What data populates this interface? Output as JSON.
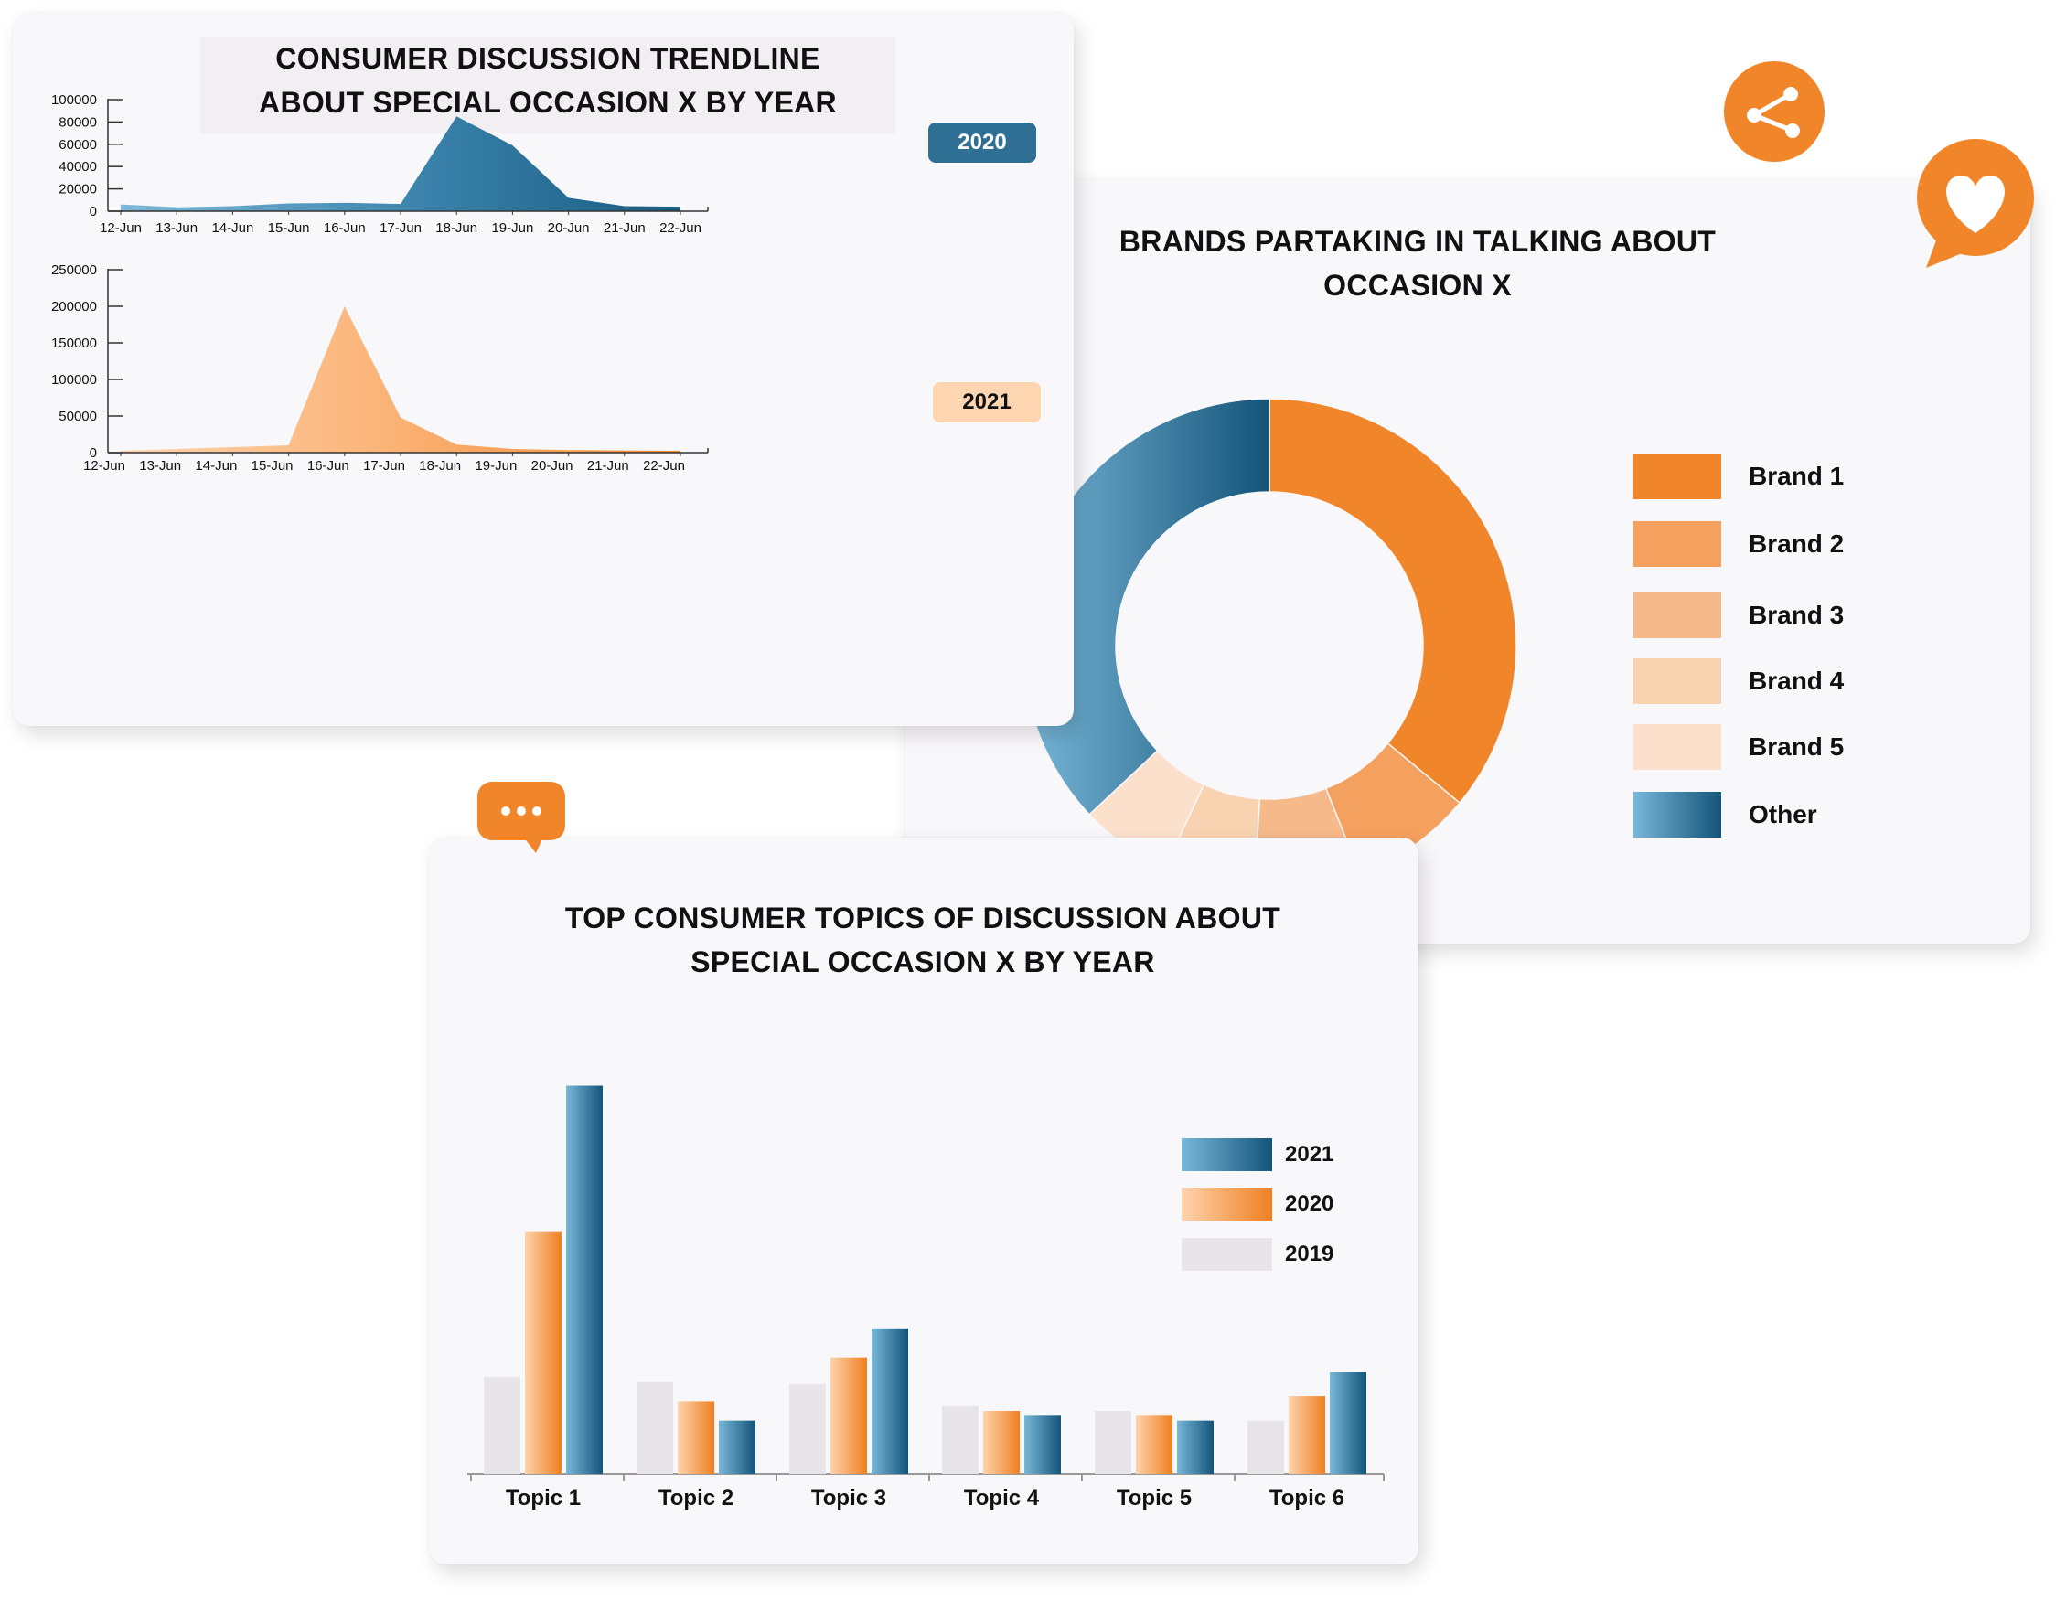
{
  "colors": {
    "orange": "#f0852a",
    "blue_dark": "#145479",
    "blue_light": "#78b7d8",
    "peach": "#fdc79a",
    "grey": "#e7e5ea"
  },
  "icons": {
    "share": "share-icon",
    "heart": "heart-icon",
    "chat": "chat-bubble-icon"
  },
  "trend_card": {
    "title_line1": "CONSUMER DISCUSSION TRENDLINE",
    "title_line2": "ABOUT SPECIAL OCCASION X BY YEAR",
    "badge_2020": "2020",
    "badge_2021": "2021"
  },
  "brands_card": {
    "title_line1": "BRANDS PARTAKING IN TALKING ABOUT",
    "title_line2": "OCCASION X"
  },
  "topics_card": {
    "title_line1": "TOP CONSUMER TOPICS OF DISCUSSION ABOUT",
    "title_line2": "SPECIAL OCCASION X BY YEAR"
  },
  "chart_data": [
    {
      "type": "area",
      "title": "CONSUMER DISCUSSION TRENDLINE ABOUT SPECIAL OCCASION X BY YEAR",
      "series_label": "2020",
      "x": [
        "12-Jun",
        "13-Jun",
        "14-Jun",
        "15-Jun",
        "16-Jun",
        "17-Jun",
        "18-Jun",
        "19-Jun",
        "20-Jun",
        "21-Jun",
        "22-Jun"
      ],
      "values": [
        6000,
        3500,
        4500,
        7000,
        7500,
        6500,
        85000,
        59000,
        12000,
        4500,
        4000
      ],
      "yticks": [
        0,
        20000,
        40000,
        60000,
        80000,
        100000
      ],
      "ylim": [
        0,
        100000
      ]
    },
    {
      "type": "area",
      "series_label": "2021",
      "x": [
        "12-Jun",
        "13-Jun",
        "14-Jun",
        "15-Jun",
        "16-Jun",
        "17-Jun",
        "18-Jun",
        "19-Jun",
        "20-Jun",
        "21-Jun",
        "22-Jun"
      ],
      "values": [
        2500,
        5000,
        7500,
        10000,
        200000,
        48000,
        11000,
        5000,
        3500,
        3000,
        2500
      ],
      "yticks": [
        0,
        50000,
        100000,
        150000,
        200000,
        250000
      ],
      "ylim": [
        0,
        250000
      ]
    },
    {
      "type": "pie",
      "title": "BRANDS PARTAKING IN TALKING ABOUT OCCASION X",
      "labels": [
        "Brand 1",
        "Brand 2",
        "Brand 3",
        "Brand 4",
        "Brand 5",
        "Other"
      ],
      "values": [
        36,
        8,
        7,
        6,
        6,
        37
      ],
      "colors": [
        "#f0852a",
        "#f4a05e",
        "#f6b98a",
        "#f9d2b1",
        "#fbe0cc",
        "#2b73a0"
      ],
      "legend": "right"
    },
    {
      "type": "bar",
      "title": "TOP CONSUMER TOPICS OF DISCUSSION ABOUT SPECIAL OCCASION X BY YEAR",
      "categories": [
        "Topic 1",
        "Topic 2",
        "Topic 3",
        "Topic 4",
        "Topic 5",
        "Topic 6"
      ],
      "series": [
        {
          "name": "2019",
          "values": [
            20,
            19,
            18.5,
            14,
            13,
            11
          ],
          "color": "#e7e5ea"
        },
        {
          "name": "2020",
          "values": [
            50,
            15,
            24,
            13,
            12,
            16
          ],
          "color": "#f0852a"
        },
        {
          "name": "2021",
          "values": [
            80,
            11,
            30,
            12,
            11,
            21
          ],
          "color": "#145479"
        }
      ],
      "legend_order": [
        "2021",
        "2020",
        "2019"
      ],
      "ylim": [
        0,
        85
      ],
      "legend": "right"
    }
  ]
}
